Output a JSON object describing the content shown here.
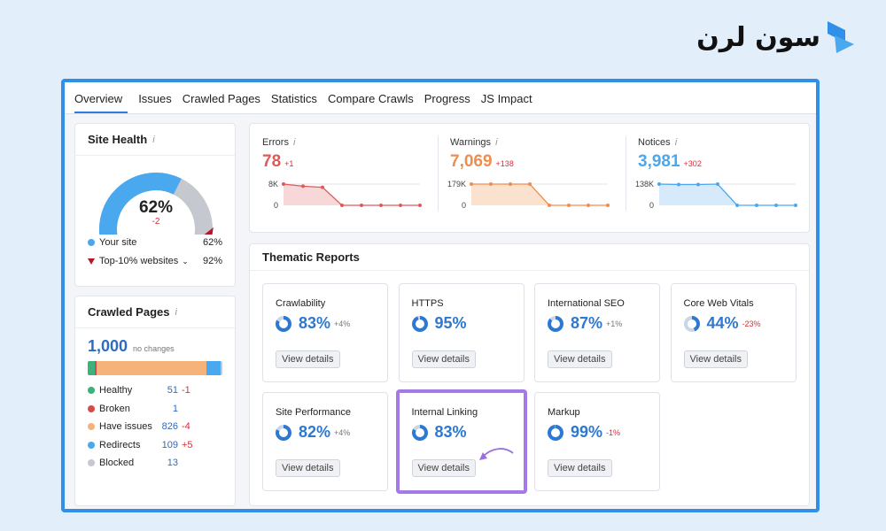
{
  "brand": {
    "text": "سون لرن"
  },
  "tabs": [
    "Overview",
    "Issues",
    "Crawled Pages",
    "Statistics",
    "Compare Crawls",
    "Progress",
    "JS Impact"
  ],
  "site_health": {
    "title": "Site Health",
    "info": "i",
    "percent": "62%",
    "delta": "-2",
    "score": 0.62,
    "your_site_label": "Your site",
    "your_site_value": "62%",
    "top_label": "Top-10% websites",
    "top_value": "92%",
    "colors": {
      "your": "#4aa8ef",
      "rest": "#c5c8cf",
      "top": "#b4182a"
    }
  },
  "crawled_pages": {
    "title": "Crawled Pages",
    "info": "i",
    "total": "1,000",
    "total_note": "no changes",
    "rows": [
      {
        "label": "Healthy",
        "count": "51",
        "delta": "-1",
        "color": "#3bb27a"
      },
      {
        "label": "Broken",
        "count": "1",
        "delta": "",
        "color": "#d94a4a"
      },
      {
        "label": "Have issues",
        "count": "826",
        "delta": "-4",
        "color": "#f4b37a"
      },
      {
        "label": "Redirects",
        "count": "109",
        "delta": "+5",
        "color": "#4aa8ef"
      },
      {
        "label": "Blocked",
        "count": "13",
        "delta": "",
        "color": "#c5c8cf"
      }
    ]
  },
  "metrics": [
    {
      "label": "Errors",
      "info": "i",
      "value": "78",
      "change": "+1",
      "color": "#e05a5a",
      "fill": "#f7d7d7",
      "ymax": "8K",
      "ymin": "0",
      "points": [
        1,
        0.9,
        0.85,
        0,
        0,
        0,
        0,
        0
      ]
    },
    {
      "label": "Warnings",
      "info": "i",
      "value": "7,069",
      "change": "+138",
      "color": "#ee8d4d",
      "fill": "#fbe2cf",
      "ymax": "179K",
      "ymin": "0",
      "points": [
        1,
        1,
        1,
        1,
        0,
        0,
        0,
        0
      ]
    },
    {
      "label": "Notices",
      "info": "i",
      "value": "3,981",
      "change": "+302",
      "color": "#4aa8ef",
      "fill": "#d6eafb",
      "ymax": "138K",
      "ymin": "0",
      "points": [
        1,
        0.98,
        0.98,
        1,
        0,
        0,
        0,
        0
      ]
    }
  ],
  "thematic": {
    "title": "Thematic Reports",
    "view_label": "View details",
    "reports": [
      {
        "name": "Crawlability",
        "value": "83%",
        "change": "+4%",
        "score": 83,
        "bad": false
      },
      {
        "name": "HTTPS",
        "value": "95%",
        "change": "",
        "score": 95,
        "bad": false
      },
      {
        "name": "International SEO",
        "value": "87%",
        "change": "+1%",
        "score": 87,
        "bad": false
      },
      {
        "name": "Core Web Vitals",
        "value": "44%",
        "change": "-23%",
        "score": 44,
        "bad": true
      },
      {
        "name": "Site Performance",
        "value": "82%",
        "change": "+4%",
        "score": 82,
        "bad": false
      },
      {
        "name": "Internal Linking",
        "value": "83%",
        "change": "",
        "score": 83,
        "bad": false,
        "highlight": true
      },
      {
        "name": "Markup",
        "value": "99%",
        "change": "-1%",
        "score": 99,
        "bad": true
      }
    ]
  }
}
